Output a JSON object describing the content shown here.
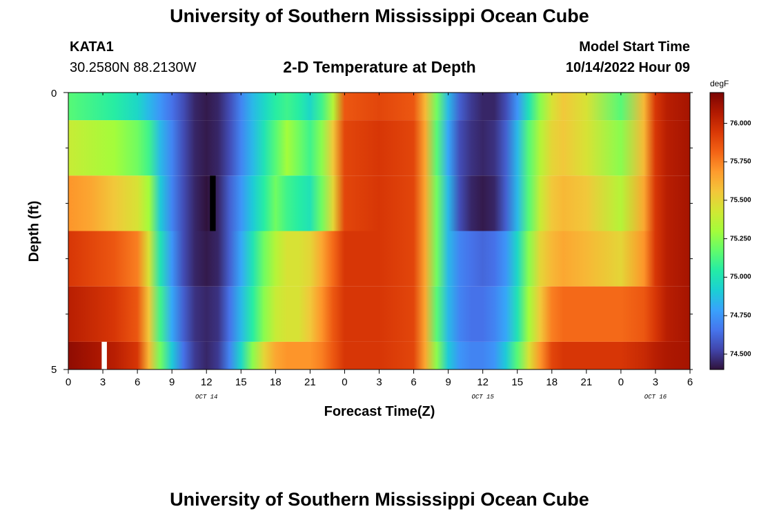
{
  "header": {
    "title": "University of Southern Mississippi Ocean Cube",
    "station": "KATA1",
    "location": "30.2580N  88.2130W",
    "subtitle": "2-D Temperature at Depth",
    "model_start_label": "Model Start Time",
    "model_start_value": "10/14/2022 Hour 09",
    "footer_title": "University of Southern Mississippi Ocean Cube"
  },
  "colors": {
    "scale": [
      "#30123b",
      "#4145ab",
      "#4675ed",
      "#39a2fc",
      "#1bcfd4",
      "#24eca6",
      "#61fc6c",
      "#a4fc3b",
      "#d1e834",
      "#f3c63a",
      "#fe9b2d",
      "#f36315",
      "#d93806",
      "#b11901",
      "#7a0403"
    ]
  },
  "chart_data": {
    "type": "heatmap",
    "xlabel": "Forecast Time(Z)",
    "ylabel": "Depth (ft)",
    "x_tick_labels": [
      "0",
      "3",
      "6",
      "9",
      "12",
      "15",
      "18",
      "21",
      "0",
      "3",
      "6",
      "9",
      "12",
      "15",
      "18",
      "21",
      "0",
      "3",
      "6"
    ],
    "day_labels": [
      {
        "label": "OCT 14",
        "x_hours": 12
      },
      {
        "label": "OCT 15",
        "x_hours": 36
      },
      {
        "label": "OCT 16",
        "x_hours": 51
      }
    ],
    "ylim": [
      0,
      5
    ],
    "y_tick_labels": [
      "0",
      "5"
    ],
    "x_range_hours": [
      0,
      54
    ],
    "depth_layers_ft": [
      [
        0.0,
        0.5
      ],
      [
        0.5,
        1.5
      ],
      [
        1.5,
        2.5
      ],
      [
        2.5,
        3.5
      ],
      [
        3.5,
        4.5
      ],
      [
        4.5,
        5.0
      ]
    ],
    "colorbar": {
      "units": "degF",
      "min": 74.4,
      "max": 76.2,
      "ticks": [
        "74.500",
        "74.750",
        "75.000",
        "75.250",
        "75.500",
        "75.750",
        "76.000"
      ]
    },
    "temperature_profiles": {
      "times_hours": [
        0,
        2,
        4,
        6,
        7,
        8,
        9,
        10,
        11,
        12,
        13,
        14,
        15,
        16,
        17,
        18,
        19,
        20,
        21,
        22,
        23,
        24,
        27,
        30,
        31,
        32,
        33,
        34,
        35,
        36,
        37,
        38,
        39,
        40,
        41,
        42,
        43,
        45,
        48,
        50,
        51,
        52,
        54
      ],
      "layers_degF": [
        [
          75.15,
          75.1,
          75.05,
          74.95,
          74.85,
          74.75,
          74.65,
          74.55,
          74.45,
          74.42,
          74.45,
          74.55,
          74.7,
          74.85,
          74.95,
          75.05,
          75.1,
          75.05,
          74.95,
          75.1,
          75.35,
          75.85,
          75.9,
          75.85,
          75.6,
          75.2,
          74.85,
          74.6,
          74.5,
          74.45,
          74.45,
          74.55,
          74.75,
          75.0,
          75.25,
          75.45,
          75.55,
          75.45,
          75.15,
          75.6,
          75.95,
          76.05,
          76.1
        ],
        [
          75.4,
          75.35,
          75.3,
          75.2,
          75.1,
          74.85,
          74.7,
          74.55,
          74.45,
          74.42,
          74.45,
          74.55,
          74.7,
          74.85,
          75.0,
          75.15,
          75.3,
          75.2,
          75.1,
          75.25,
          75.55,
          75.9,
          75.95,
          75.9,
          75.65,
          75.15,
          74.8,
          74.55,
          74.48,
          74.45,
          74.48,
          74.6,
          74.85,
          75.15,
          75.35,
          75.5,
          75.55,
          75.45,
          75.25,
          75.6,
          75.95,
          76.05,
          76.1
        ],
        [
          75.7,
          75.65,
          75.55,
          75.45,
          75.3,
          74.9,
          74.7,
          74.55,
          74.45,
          74.4,
          74.45,
          74.6,
          74.75,
          74.9,
          75.05,
          75.2,
          75.1,
          75.05,
          75.0,
          75.2,
          75.5,
          75.9,
          75.95,
          75.9,
          75.65,
          75.2,
          74.85,
          74.55,
          74.45,
          74.42,
          74.45,
          74.6,
          74.85,
          75.15,
          75.4,
          75.55,
          75.6,
          75.55,
          75.35,
          75.65,
          75.95,
          76.05,
          76.1
        ],
        [
          75.95,
          75.9,
          75.85,
          75.75,
          75.45,
          75.0,
          74.75,
          74.55,
          74.45,
          74.42,
          74.45,
          74.6,
          74.8,
          75.0,
          75.2,
          75.35,
          75.45,
          75.45,
          75.5,
          75.65,
          75.8,
          75.95,
          75.95,
          75.9,
          75.65,
          75.2,
          74.85,
          74.7,
          74.65,
          74.62,
          74.65,
          74.75,
          74.95,
          75.25,
          75.5,
          75.6,
          75.65,
          75.6,
          75.5,
          75.7,
          75.95,
          76.05,
          76.1
        ],
        [
          76.05,
          76.0,
          75.95,
          75.85,
          75.55,
          75.1,
          74.8,
          74.6,
          74.48,
          74.45,
          74.48,
          74.65,
          74.85,
          75.05,
          75.25,
          75.4,
          75.45,
          75.45,
          75.55,
          75.7,
          75.85,
          75.95,
          75.95,
          75.9,
          75.65,
          75.15,
          74.85,
          74.7,
          74.65,
          74.65,
          74.7,
          74.8,
          75.0,
          75.3,
          75.55,
          75.75,
          75.8,
          75.8,
          75.8,
          75.85,
          75.95,
          76.05,
          76.1
        ],
        [
          76.15,
          76.1,
          76.05,
          75.95,
          75.6,
          75.2,
          74.9,
          74.65,
          74.5,
          74.45,
          74.5,
          74.7,
          74.95,
          75.25,
          75.5,
          75.65,
          75.7,
          75.7,
          75.7,
          75.75,
          75.85,
          75.95,
          75.95,
          75.9,
          75.65,
          75.25,
          74.9,
          74.75,
          74.7,
          74.7,
          74.75,
          74.9,
          75.15,
          75.45,
          75.7,
          75.9,
          75.95,
          75.95,
          75.95,
          76.0,
          76.05,
          76.08,
          76.1
        ]
      ]
    },
    "markers": [
      {
        "type": "missing-data",
        "color": "#000000",
        "x_hours": [
          12.3,
          12.8
        ],
        "depth_ft": [
          1.5,
          2.5
        ]
      },
      {
        "type": "missing-data",
        "color": "#ffffff",
        "x_hours": [
          2.9,
          3.35
        ],
        "depth_ft": [
          4.5,
          5.0
        ]
      }
    ]
  }
}
